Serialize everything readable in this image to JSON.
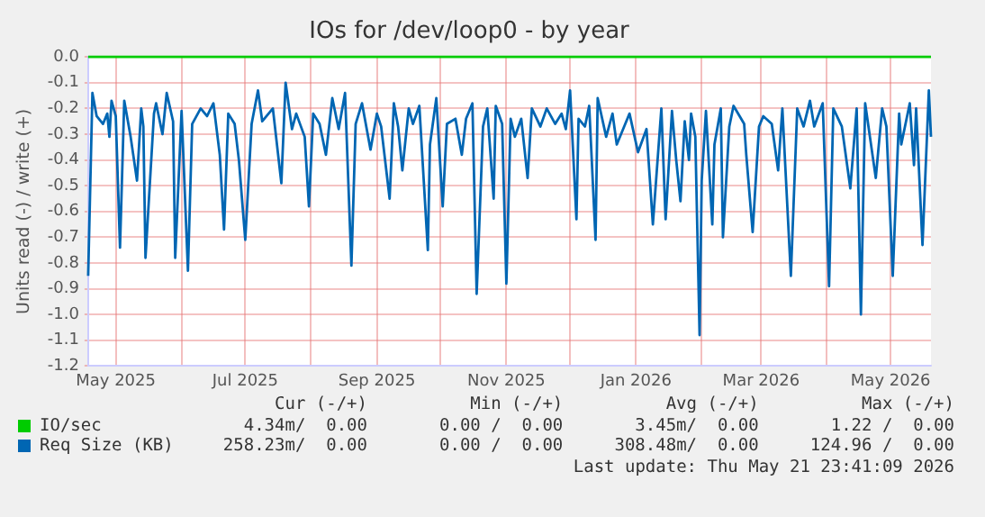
{
  "chart_data": {
    "type": "line",
    "title": "IOs for /dev/loop0 - by year",
    "ylabel": "Units read (-) / write (+)",
    "xlim": [
      "2025-04-18",
      "2026-05-20"
    ],
    "xticks": [
      {
        "value": "2025-05-01",
        "label": "May 2025"
      },
      {
        "value": "2025-06-01",
        "label": null
      },
      {
        "value": "2025-07-01",
        "label": "Jul 2025"
      },
      {
        "value": "2025-08-01",
        "label": null
      },
      {
        "value": "2025-09-01",
        "label": "Sep 2025"
      },
      {
        "value": "2025-10-01",
        "label": null
      },
      {
        "value": "2025-11-01",
        "label": "Nov 2025"
      },
      {
        "value": "2025-12-01",
        "label": null
      },
      {
        "value": "2026-01-01",
        "label": "Jan 2026"
      },
      {
        "value": "2026-02-01",
        "label": null
      },
      {
        "value": "2026-03-01",
        "label": "Mar 2026"
      },
      {
        "value": "2026-04-01",
        "label": null
      },
      {
        "value": "2026-05-01",
        "label": "May 2026"
      }
    ],
    "ylim": [
      -1.2,
      0.0
    ],
    "yticks": [
      {
        "value": -1.2,
        "label": "-1.2"
      },
      {
        "value": -1.1,
        "label": "-1.1"
      },
      {
        "value": -1.0,
        "label": "-1.0"
      },
      {
        "value": -0.9,
        "label": "-0.9"
      },
      {
        "value": -0.8,
        "label": "-0.8"
      },
      {
        "value": -0.7,
        "label": "-0.7"
      },
      {
        "value": -0.6,
        "label": "-0.6"
      },
      {
        "value": -0.5,
        "label": "-0.5"
      },
      {
        "value": -0.4,
        "label": "-0.4"
      },
      {
        "value": -0.3,
        "label": "-0.3"
      },
      {
        "value": -0.2,
        "label": "-0.2"
      },
      {
        "value": -0.1,
        "label": "-0.1"
      },
      {
        "value": 0.0,
        "label": "0.0"
      }
    ],
    "grid": true,
    "legend": "bottom",
    "marker": "none",
    "line_style": "solid",
    "ref_lines": [
      {
        "axis": "y",
        "value": 0,
        "color": "#000000"
      }
    ],
    "series": [
      {
        "name": "IO/sec",
        "color": "#00cc00",
        "x": [
          "2025-04-18",
          "2026-05-20"
        ],
        "values": [
          0,
          0
        ]
      },
      {
        "name": "Req Size (KB)",
        "color": "#0066b3",
        "x": [
          "2025-04-18",
          "2025-04-20",
          "2025-04-22",
          "2025-04-25",
          "2025-04-27",
          "2025-04-28",
          "2025-04-29",
          "2025-05-01",
          "2025-05-03",
          "2025-05-05",
          "2025-05-08",
          "2025-05-11",
          "2025-05-13",
          "2025-05-14",
          "2025-05-15",
          "2025-05-19",
          "2025-05-20",
          "2025-05-23",
          "2025-05-25",
          "2025-05-28",
          "2025-05-29",
          "2025-06-01",
          "2025-06-04",
          "2025-06-06",
          "2025-06-10",
          "2025-06-13",
          "2025-06-16",
          "2025-06-19",
          "2025-06-21",
          "2025-06-23",
          "2025-06-26",
          "2025-06-28",
          "2025-07-01",
          "2025-07-04",
          "2025-07-07",
          "2025-07-09",
          "2025-07-14",
          "2025-07-18",
          "2025-07-20",
          "2025-07-23",
          "2025-07-25",
          "2025-07-29",
          "2025-07-31",
          "2025-08-02",
          "2025-08-05",
          "2025-08-08",
          "2025-08-11",
          "2025-08-14",
          "2025-08-17",
          "2025-08-20",
          "2025-08-22",
          "2025-08-25",
          "2025-08-29",
          "2025-09-01",
          "2025-09-03",
          "2025-09-07",
          "2025-09-09",
          "2025-09-11",
          "2025-09-13",
          "2025-09-16",
          "2025-09-18",
          "2025-09-21",
          "2025-09-25",
          "2025-09-26",
          "2025-09-29",
          "2025-10-02",
          "2025-10-04",
          "2025-10-08",
          "2025-10-11",
          "2025-10-13",
          "2025-10-16",
          "2025-10-18",
          "2025-10-21",
          "2025-10-23",
          "2025-10-26",
          "2025-10-27",
          "2025-10-30",
          "2025-11-01",
          "2025-11-03",
          "2025-11-05",
          "2025-11-08",
          "2025-11-11",
          "2025-11-13",
          "2025-11-17",
          "2025-11-20",
          "2025-11-24",
          "2025-11-27",
          "2025-11-29",
          "2025-12-01",
          "2025-12-04",
          "2025-12-05",
          "2025-12-08",
          "2025-12-10",
          "2025-12-13",
          "2025-12-14",
          "2025-12-18",
          "2025-12-21",
          "2025-12-23",
          "2025-12-27",
          "2025-12-29",
          "2026-01-02",
          "2026-01-06",
          "2026-01-09",
          "2026-01-13",
          "2026-01-15",
          "2026-01-18",
          "2026-01-20",
          "2026-01-22",
          "2026-01-24",
          "2026-01-26",
          "2026-01-27",
          "2026-01-29",
          "2026-01-31",
          "2026-02-01",
          "2026-02-03",
          "2026-02-06",
          "2026-02-07",
          "2026-02-10",
          "2026-02-11",
          "2026-02-14",
          "2026-02-16",
          "2026-02-21",
          "2026-02-22",
          "2026-02-25",
          "2026-02-28",
          "2026-03-02",
          "2026-03-06",
          "2026-03-09",
          "2026-03-11",
          "2026-03-15",
          "2026-03-18",
          "2026-03-21",
          "2026-03-24",
          "2026-03-26",
          "2026-03-30",
          "2026-04-02",
          "2026-04-04",
          "2026-04-08",
          "2026-04-12",
          "2026-04-15",
          "2026-04-17",
          "2026-04-19",
          "2026-04-24",
          "2026-04-27",
          "2026-04-29",
          "2026-05-02",
          "2026-05-05",
          "2026-05-06",
          "2026-05-10",
          "2026-05-12",
          "2026-05-13",
          "2026-05-16",
          "2026-05-19",
          "2026-05-20"
        ],
        "values": [
          -0.85,
          -0.14,
          -0.23,
          -0.26,
          -0.22,
          -0.31,
          -0.17,
          -0.23,
          -0.74,
          -0.17,
          -0.31,
          -0.48,
          -0.2,
          -0.27,
          -0.78,
          -0.22,
          -0.18,
          -0.3,
          -0.14,
          -0.25,
          -0.78,
          -0.21,
          -0.83,
          -0.26,
          -0.2,
          -0.23,
          -0.18,
          -0.38,
          -0.67,
          -0.22,
          -0.26,
          -0.4,
          -0.71,
          -0.26,
          -0.13,
          -0.25,
          -0.2,
          -0.49,
          -0.1,
          -0.28,
          -0.22,
          -0.31,
          -0.58,
          -0.22,
          -0.26,
          -0.38,
          -0.16,
          -0.28,
          -0.14,
          -0.81,
          -0.26,
          -0.18,
          -0.36,
          -0.22,
          -0.27,
          -0.55,
          -0.18,
          -0.27,
          -0.44,
          -0.2,
          -0.26,
          -0.19,
          -0.75,
          -0.34,
          -0.16,
          -0.58,
          -0.26,
          -0.24,
          -0.38,
          -0.24,
          -0.18,
          -0.92,
          -0.27,
          -0.2,
          -0.55,
          -0.19,
          -0.26,
          -0.88,
          -0.24,
          -0.31,
          -0.24,
          -0.47,
          -0.2,
          -0.27,
          -0.2,
          -0.26,
          -0.22,
          -0.28,
          -0.13,
          -0.63,
          -0.24,
          -0.27,
          -0.19,
          -0.71,
          -0.16,
          -0.31,
          -0.22,
          -0.34,
          -0.26,
          -0.22,
          -0.37,
          -0.28,
          -0.65,
          -0.2,
          -0.63,
          -0.21,
          -0.4,
          -0.56,
          -0.25,
          -0.4,
          -0.22,
          -0.31,
          -1.08,
          -0.48,
          -0.21,
          -0.65,
          -0.34,
          -0.2,
          -0.7,
          -0.27,
          -0.19,
          -0.26,
          -0.38,
          -0.68,
          -0.27,
          -0.23,
          -0.26,
          -0.44,
          -0.2,
          -0.85,
          -0.2,
          -0.27,
          -0.17,
          -0.27,
          -0.18,
          -0.89,
          -0.2,
          -0.27,
          -0.51,
          -0.2,
          -1.0,
          -0.18,
          -0.47,
          -0.2,
          -0.27,
          -0.85,
          -0.22,
          -0.34,
          -0.18,
          -0.42,
          -0.2,
          -0.73,
          -0.13,
          -0.31
        ]
      }
    ],
    "annotations": [
      "Cur (-/+)          Min (-/+)          Avg (-/+)          Max (-/+)",
      "4.34m/  0.00       0.00 /  0.00       3.45m/  0.00       1.22 /  0.00",
      "258.23m/  0.00       0.00 /  0.00     308.48m/  0.00     124.96 /  0.00",
      "Last update: Thu May 21 23:41:09 2026"
    ]
  }
}
